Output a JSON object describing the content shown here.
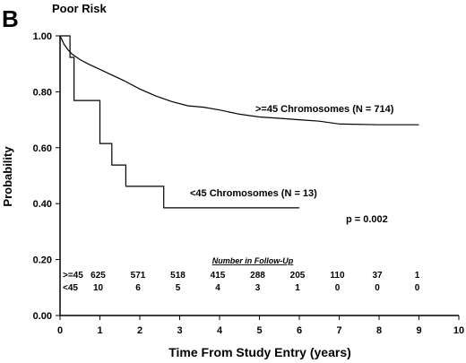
{
  "chart_data": {
    "type": "line",
    "panel_letter": "B",
    "title": "Poor Risk",
    "xlabel": "Time From Study Entry (years)",
    "ylabel": "Probability",
    "xlim": [
      0,
      10
    ],
    "ylim": [
      0,
      1
    ],
    "xticks": [
      "0",
      "1",
      "2",
      "3",
      "4",
      "5",
      "6",
      "7",
      "8",
      "9",
      "10"
    ],
    "yticks": [
      "0.00",
      "0.20",
      "0.40",
      "0.60",
      "0.80",
      "1.00"
    ],
    "grid": false,
    "series": [
      {
        "name": ">=45 Chromosomes (N = 714)",
        "x": [
          0,
          0.1,
          0.2,
          0.3,
          0.4,
          0.5,
          0.7,
          1.0,
          1.3,
          1.6,
          2.0,
          2.4,
          2.8,
          3.2,
          3.6,
          4.0,
          4.5,
          5.0,
          5.5,
          6.0,
          6.5,
          7.0,
          8.0,
          9.0
        ],
        "y": [
          1.0,
          0.97,
          0.95,
          0.935,
          0.925,
          0.915,
          0.9,
          0.88,
          0.86,
          0.84,
          0.81,
          0.785,
          0.765,
          0.75,
          0.745,
          0.735,
          0.72,
          0.71,
          0.705,
          0.7,
          0.695,
          0.685,
          0.682,
          0.682
        ]
      },
      {
        "name": "<45 Chromosomes (N = 13)",
        "x": [
          0,
          0.25,
          0.25,
          0.35,
          0.35,
          1.0,
          1.0,
          1.3,
          1.3,
          1.65,
          1.65,
          2.6,
          2.6,
          6.0
        ],
        "y": [
          1.0,
          1.0,
          0.923,
          0.923,
          0.769,
          0.769,
          0.615,
          0.615,
          0.538,
          0.538,
          0.462,
          0.462,
          0.385,
          0.385
        ]
      }
    ],
    "annotations": {
      "p_value": "p = 0.002",
      "followup_title": "Number in Follow-Up",
      "followup_rows": [
        {
          "label": ">=45",
          "values": [
            "625",
            "571",
            "518",
            "415",
            "288",
            "205",
            "110",
            "37",
            "1"
          ]
        },
        {
          "label": "<45",
          "values": [
            "10",
            "6",
            "5",
            "4",
            "3",
            "1",
            "0",
            "0",
            "0"
          ]
        }
      ]
    }
  }
}
